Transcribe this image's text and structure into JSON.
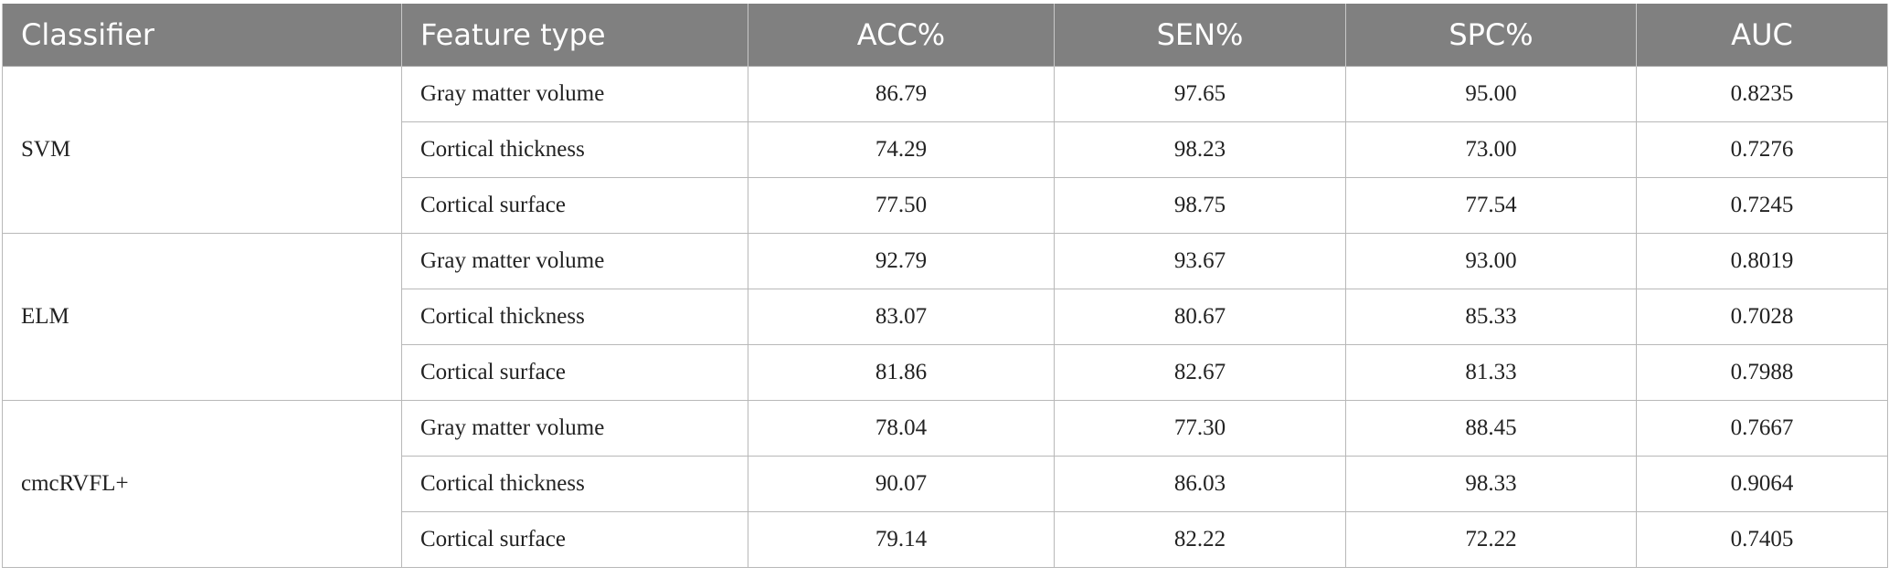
{
  "table": {
    "headers": [
      "Classifier",
      "Feature type",
      "ACC%",
      "SEN%",
      "SPC%",
      "AUC"
    ],
    "groups": [
      {
        "classifier": "SVM",
        "rows": [
          {
            "feature": "Gray matter volume",
            "acc": "86.79",
            "sen": "97.65",
            "spc": "95.00",
            "auc": "0.8235"
          },
          {
            "feature": "Cortical thickness",
            "acc": "74.29",
            "sen": "98.23",
            "spc": "73.00",
            "auc": "0.7276"
          },
          {
            "feature": "Cortical surface",
            "acc": "77.50",
            "sen": "98.75",
            "spc": "77.54",
            "auc": "0.7245"
          }
        ]
      },
      {
        "classifier": "ELM",
        "rows": [
          {
            "feature": "Gray matter volume",
            "acc": "92.79",
            "sen": "93.67",
            "spc": "93.00",
            "auc": "0.8019"
          },
          {
            "feature": "Cortical thickness",
            "acc": "83.07",
            "sen": "80.67",
            "spc": "85.33",
            "auc": "0.7028"
          },
          {
            "feature": "Cortical surface",
            "acc": "81.86",
            "sen": "82.67",
            "spc": "81.33",
            "auc": "0.7988"
          }
        ]
      },
      {
        "classifier": "cmcRVFL+",
        "rows": [
          {
            "feature": "Gray matter volume",
            "acc": "78.04",
            "sen": "77.30",
            "spc": "88.45",
            "auc": "0.7667"
          },
          {
            "feature": "Cortical thickness",
            "acc": "90.07",
            "sen": "86.03",
            "spc": "98.33",
            "auc": "0.9064"
          },
          {
            "feature": "Cortical surface",
            "acc": "79.14",
            "sen": "82.22",
            "spc": "72.22",
            "auc": "0.7405"
          }
        ]
      }
    ]
  }
}
